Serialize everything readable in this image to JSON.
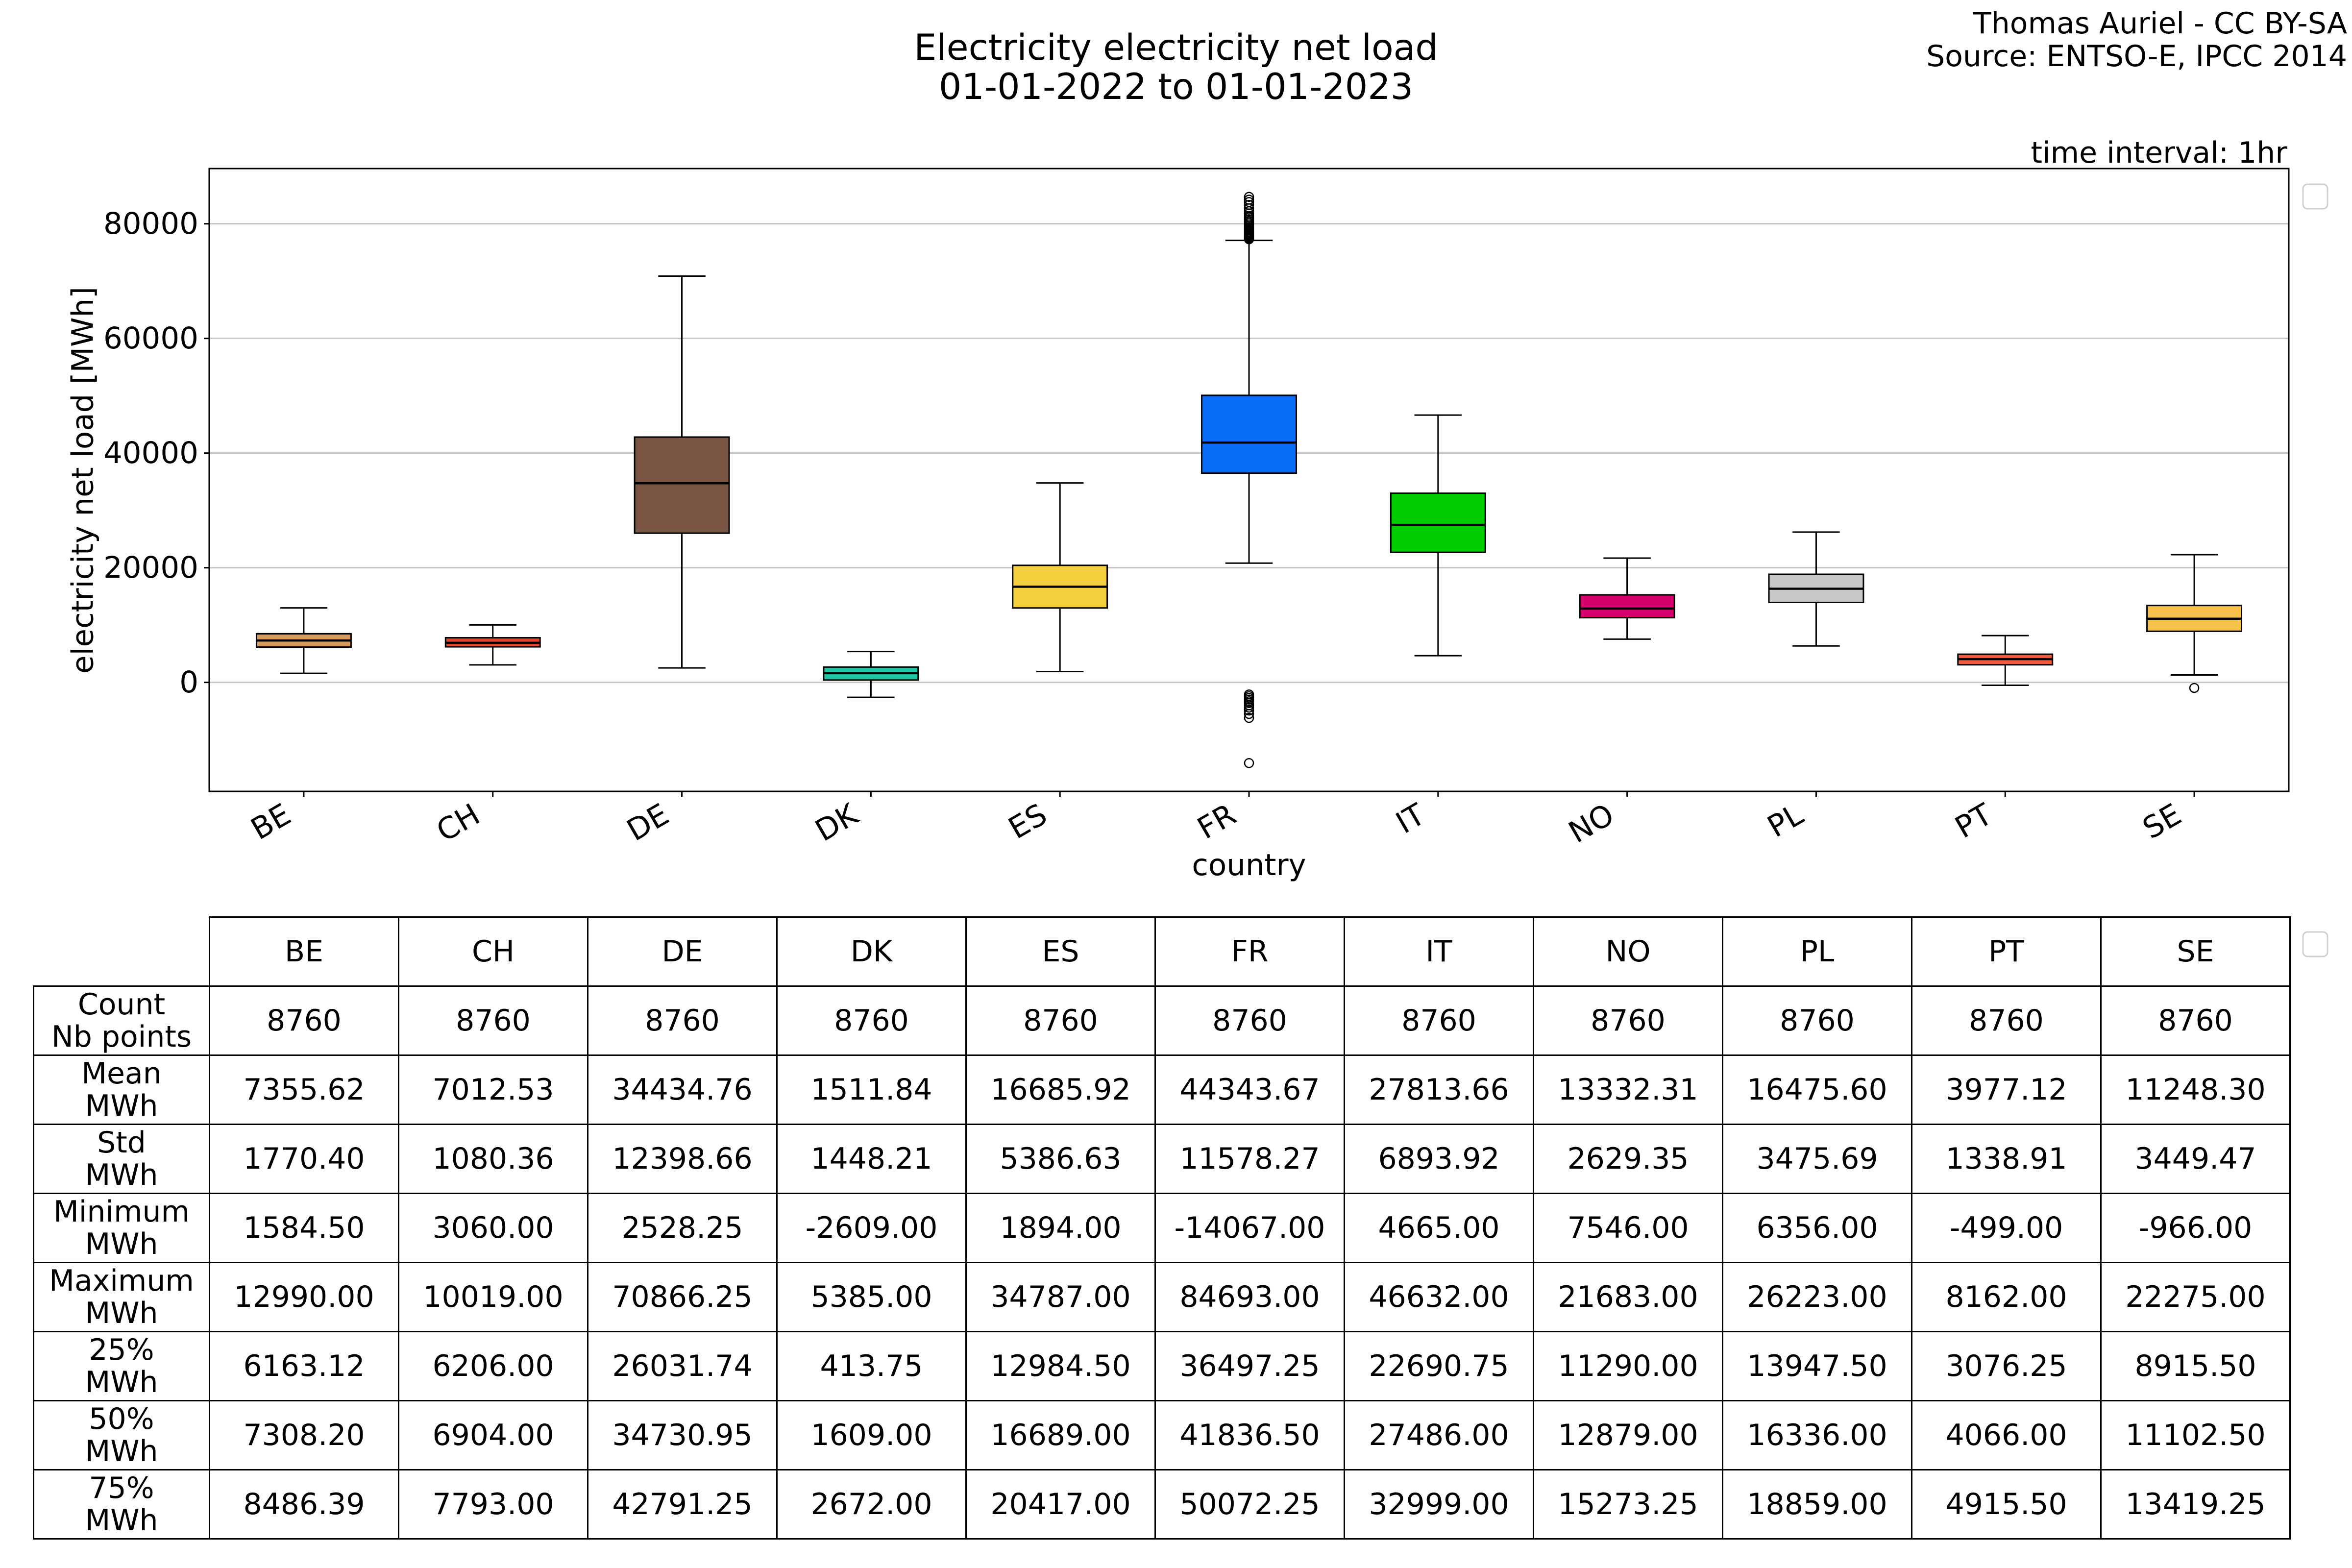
{
  "credits": {
    "author": "Thomas Auriel - CC BY-SA",
    "source": "Source: ENTSO-E, IPCC 2014"
  },
  "chart_data": [
    {
      "type": "box",
      "title": "Electricity electricity net load",
      "subtitle": "01-01-2022 to 01-01-2023",
      "annotation": "time interval: 1hr",
      "xlabel": "country",
      "ylabel": "electricity net load [MWh]",
      "ylim": [
        -19005,
        89631
      ],
      "yticks": [
        0,
        20000,
        40000,
        60000,
        80000
      ],
      "ytick_labels": [
        "0",
        "20000",
        "40000",
        "60000",
        "80000"
      ],
      "grid": {
        "y": true,
        "x": false
      },
      "legend": "right-outside",
      "categories": [
        "BE",
        "CH",
        "DE",
        "DK",
        "ES",
        "FR",
        "IT",
        "NO",
        "PL",
        "PT",
        "SE"
      ],
      "boxes": [
        {
          "category": "BE",
          "color": "#d99a5e",
          "whisker_low": 1584.5,
          "q1": 6163.12,
          "median": 7308.2,
          "q3": 8486.39,
          "whisker_high": 12990,
          "outliers": []
        },
        {
          "category": "CH",
          "color": "#e5412b",
          "whisker_low": 3060,
          "q1": 6206,
          "median": 6904,
          "q3": 7793,
          "whisker_high": 10019,
          "outliers": []
        },
        {
          "category": "DE",
          "color": "#7b5544",
          "whisker_low": 2528.25,
          "q1": 26031.74,
          "median": 34730.95,
          "q3": 42791.25,
          "whisker_high": 70866.25,
          "outliers": []
        },
        {
          "category": "DK",
          "color": "#1fc6a3",
          "whisker_low": -2609,
          "q1": 413.75,
          "median": 1609,
          "q3": 2672,
          "whisker_high": 5385,
          "outliers": []
        },
        {
          "category": "ES",
          "color": "#f4d03f",
          "whisker_low": 1894,
          "q1": 12984.5,
          "median": 16689,
          "q3": 20417,
          "whisker_high": 34787,
          "outliers": []
        },
        {
          "category": "FR",
          "color": "#0a6df8",
          "whisker_low": 20800,
          "q1": 36497.25,
          "median": 41836.5,
          "q3": 50072.25,
          "whisker_high": 77100,
          "outliers": [
            77300,
            77450,
            77600,
            77800,
            78000,
            78200,
            78400,
            78600,
            78850,
            79100,
            79350,
            79600,
            79900,
            80200,
            80500,
            80800,
            81100,
            81400,
            81800,
            82200,
            82700,
            83300,
            83800,
            84200,
            84693,
            -2100,
            -2400,
            -2700,
            -3000,
            -3300,
            -3600,
            -4000,
            -4400,
            -4900,
            -5500,
            -6200,
            -14067
          ]
        },
        {
          "category": "IT",
          "color": "#00cc00",
          "whisker_low": 4665,
          "q1": 22690.75,
          "median": 27486,
          "q3": 32999,
          "whisker_high": 46632,
          "outliers": []
        },
        {
          "category": "NO",
          "color": "#d6006d",
          "whisker_low": 7546,
          "q1": 11290,
          "median": 12879,
          "q3": 15273.25,
          "whisker_high": 21683,
          "outliers": []
        },
        {
          "category": "PL",
          "color": "#c8c8c8",
          "whisker_low": 6356,
          "q1": 13947.5,
          "median": 16336,
          "q3": 18859,
          "whisker_high": 26223,
          "outliers": []
        },
        {
          "category": "PT",
          "color": "#f25b3d",
          "whisker_low": -499,
          "q1": 3076.25,
          "median": 4066,
          "q3": 4915.5,
          "whisker_high": 8162,
          "outliers": []
        },
        {
          "category": "SE",
          "color": "#f7c14b",
          "whisker_low": 1300,
          "q1": 8915.5,
          "median": 11102.5,
          "q3": 13419.25,
          "whisker_high": 22275,
          "outliers": [
            -966
          ]
        }
      ]
    },
    {
      "type": "table",
      "columns": [
        "BE",
        "CH",
        "DE",
        "DK",
        "ES",
        "FR",
        "IT",
        "NO",
        "PL",
        "PT",
        "SE"
      ],
      "rows": [
        {
          "label": "Count\nNb points",
          "values": [
            "8760",
            "8760",
            "8760",
            "8760",
            "8760",
            "8760",
            "8760",
            "8760",
            "8760",
            "8760",
            "8760"
          ]
        },
        {
          "label": "Mean\nMWh",
          "values": [
            "7355.62",
            "7012.53",
            "34434.76",
            "1511.84",
            "16685.92",
            "44343.67",
            "27813.66",
            "13332.31",
            "16475.60",
            "3977.12",
            "11248.30"
          ]
        },
        {
          "label": "Std\nMWh",
          "values": [
            "1770.40",
            "1080.36",
            "12398.66",
            "1448.21",
            "5386.63",
            "11578.27",
            "6893.92",
            "2629.35",
            "3475.69",
            "1338.91",
            "3449.47"
          ]
        },
        {
          "label": "Minimum\nMWh",
          "values": [
            "1584.50",
            "3060.00",
            "2528.25",
            "-2609.00",
            "1894.00",
            "-14067.00",
            "4665.00",
            "7546.00",
            "6356.00",
            "-499.00",
            "-966.00"
          ]
        },
        {
          "label": "Maximum\nMWh",
          "values": [
            "12990.00",
            "10019.00",
            "70866.25",
            "5385.00",
            "34787.00",
            "84693.00",
            "46632.00",
            "21683.00",
            "26223.00",
            "8162.00",
            "22275.00"
          ]
        },
        {
          "label": "25%\nMWh",
          "values": [
            "6163.12",
            "6206.00",
            "26031.74",
            "413.75",
            "12984.50",
            "36497.25",
            "22690.75",
            "11290.00",
            "13947.50",
            "3076.25",
            "8915.50"
          ]
        },
        {
          "label": "50%\nMWh",
          "values": [
            "7308.20",
            "6904.00",
            "34730.95",
            "1609.00",
            "16689.00",
            "41836.50",
            "27486.00",
            "12879.00",
            "16336.00",
            "4066.00",
            "11102.50"
          ]
        },
        {
          "label": "75%\nMWh",
          "values": [
            "8486.39",
            "7793.00",
            "42791.25",
            "2672.00",
            "20417.00",
            "50072.25",
            "32999.00",
            "15273.25",
            "18859.00",
            "4915.50",
            "13419.25"
          ]
        }
      ]
    }
  ]
}
